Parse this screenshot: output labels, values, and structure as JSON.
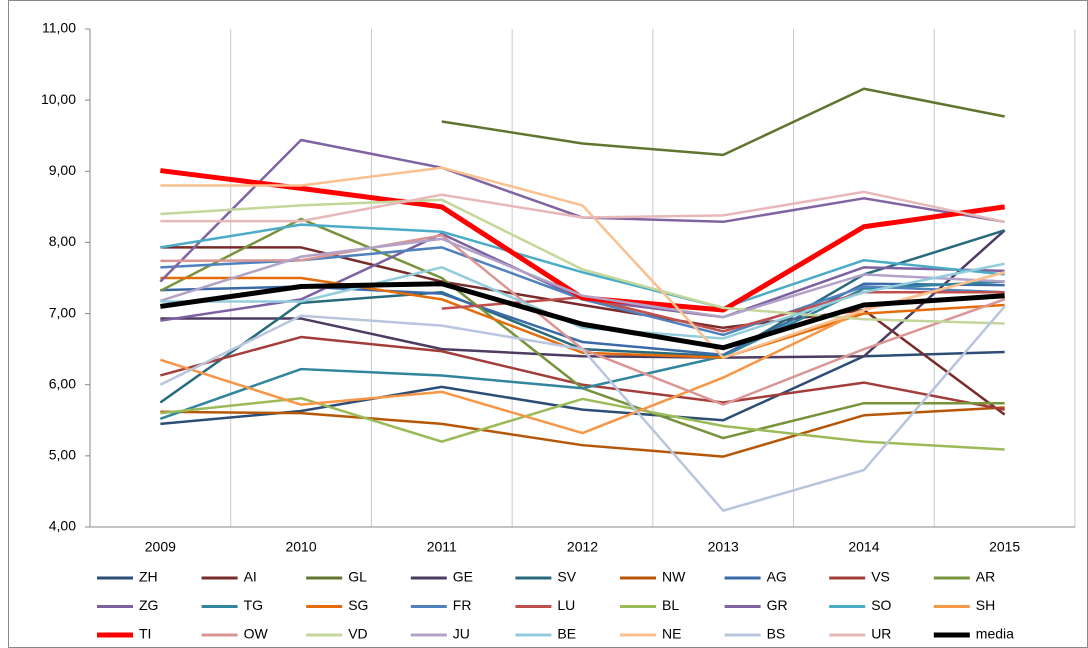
{
  "chart_data": {
    "type": "line",
    "categories": [
      "2009",
      "2010",
      "2011",
      "2012",
      "2013",
      "2014",
      "2015"
    ],
    "ylim": [
      4,
      11
    ],
    "yticks": [
      {
        "value": 4,
        "label": "4,00"
      },
      {
        "value": 5,
        "label": "5,00"
      },
      {
        "value": 6,
        "label": "6,00"
      },
      {
        "value": 7,
        "label": "7,00"
      },
      {
        "value": 8,
        "label": "8,00"
      },
      {
        "value": 9,
        "label": "9,00"
      },
      {
        "value": 10,
        "label": "10,00"
      },
      {
        "value": 11,
        "label": "11,00"
      }
    ],
    "legend": "bottom",
    "series": [
      {
        "name": "ZH",
        "color": "#2c4d75",
        "values": [
          5.45,
          5.63,
          5.97,
          5.65,
          5.5,
          6.4,
          6.46
        ]
      },
      {
        "name": "AI",
        "color": "#772c2a",
        "values": [
          7.93,
          7.93,
          7.45,
          7.12,
          6.8,
          7.05,
          5.58
        ]
      },
      {
        "name": "GL",
        "color": "#5f7530",
        "values": [
          null,
          null,
          9.7,
          9.39,
          9.23,
          10.16,
          9.77
        ]
      },
      {
        "name": "GE",
        "color": "#4d3b62",
        "values": [
          6.93,
          6.93,
          6.5,
          6.4,
          6.38,
          6.4,
          8.17
        ]
      },
      {
        "name": "SV",
        "color": "#276a7c",
        "values": [
          5.75,
          7.15,
          7.3,
          6.5,
          6.4,
          7.55,
          8.17
        ]
      },
      {
        "name": "NW",
        "color": "#b65708",
        "values": [
          5.62,
          5.6,
          5.45,
          5.15,
          4.99,
          5.57,
          5.68
        ]
      },
      {
        "name": "AG",
        "color": "#3a6aa8",
        "values": [
          7.33,
          7.38,
          7.28,
          6.6,
          6.42,
          7.42,
          7.4
        ]
      },
      {
        "name": "VS",
        "color": "#a33d3a",
        "values": [
          6.13,
          6.67,
          6.47,
          6.0,
          5.75,
          6.03,
          5.65
        ]
      },
      {
        "name": "AR",
        "color": "#77933c",
        "values": [
          7.32,
          8.33,
          7.5,
          5.95,
          5.25,
          5.74,
          5.74
        ]
      },
      {
        "name": "ZG",
        "color": "#7d60a0",
        "values": [
          6.9,
          7.2,
          8.12,
          7.2,
          6.95,
          7.65,
          7.6
        ]
      },
      {
        "name": "TG",
        "color": "#31859c",
        "values": [
          5.52,
          6.22,
          6.13,
          5.95,
          6.4,
          7.35,
          7.45
        ]
      },
      {
        "name": "SG",
        "color": "#e46c0a",
        "values": [
          7.5,
          7.5,
          7.2,
          6.45,
          6.38,
          7.0,
          7.12
        ]
      },
      {
        "name": "FR",
        "color": "#4f81bd",
        "values": [
          7.65,
          7.75,
          7.93,
          7.2,
          6.7,
          7.38,
          7.3
        ]
      },
      {
        "name": "LU",
        "color": "#c0504d",
        "values": [
          null,
          null,
          7.07,
          7.23,
          6.75,
          7.3,
          7.3
        ]
      },
      {
        "name": "BL",
        "color": "#9bbb59",
        "values": [
          5.6,
          5.81,
          5.2,
          5.8,
          5.42,
          5.2,
          5.09
        ]
      },
      {
        "name": "GR",
        "color": "#8064a2",
        "values": [
          7.45,
          9.44,
          9.05,
          8.35,
          8.29,
          8.62,
          8.29
        ]
      },
      {
        "name": "SO",
        "color": "#4bacc6",
        "values": [
          7.93,
          8.25,
          8.15,
          7.58,
          7.08,
          7.75,
          7.55
        ]
      },
      {
        "name": "SH",
        "color": "#f79646",
        "values": [
          6.35,
          5.72,
          5.9,
          5.32,
          6.1,
          7.05,
          7.58
        ]
      },
      {
        "name": "TI",
        "color": "#ff0000",
        "line_width": 5,
        "values": [
          9.01,
          8.76,
          8.5,
          7.22,
          7.05,
          8.22,
          8.5
        ]
      },
      {
        "name": "OW",
        "color": "#d99694",
        "values": [
          7.74,
          7.75,
          8.1,
          6.5,
          5.72,
          6.5,
          7.2
        ]
      },
      {
        "name": "VD",
        "color": "#c3d69b",
        "values": [
          8.4,
          8.52,
          8.6,
          7.62,
          7.08,
          6.92,
          6.86
        ]
      },
      {
        "name": "JU",
        "color": "#b3a2c7",
        "values": [
          7.18,
          7.8,
          8.05,
          7.25,
          6.95,
          7.55,
          7.45
        ]
      },
      {
        "name": "BE",
        "color": "#93cddd",
        "values": [
          7.17,
          7.17,
          7.65,
          6.8,
          6.65,
          7.3,
          7.7
        ]
      },
      {
        "name": "NE",
        "color": "#fac090",
        "values": [
          8.8,
          8.8,
          9.05,
          8.52,
          6.38,
          7.05,
          7.58
        ]
      },
      {
        "name": "BS",
        "color": "#b9c5dd",
        "values": [
          6.0,
          6.97,
          6.83,
          6.5,
          4.23,
          4.8,
          7.1
        ]
      },
      {
        "name": "UR",
        "color": "#e6b9b8",
        "values": [
          8.3,
          8.3,
          8.67,
          8.35,
          8.38,
          8.71,
          8.29
        ]
      },
      {
        "name": "media",
        "color": "#000000",
        "line_width": 5,
        "values": [
          7.1,
          7.38,
          7.42,
          6.85,
          6.52,
          7.12,
          7.25
        ]
      }
    ]
  }
}
